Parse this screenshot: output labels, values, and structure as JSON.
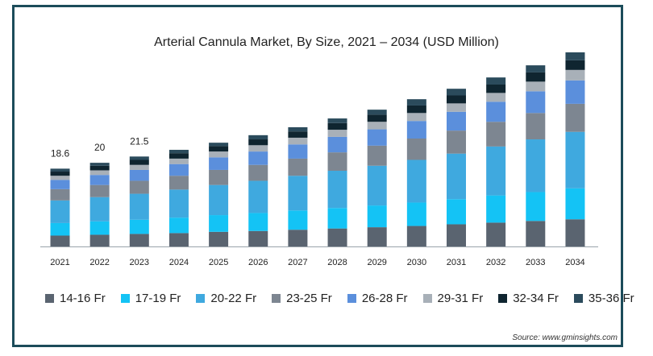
{
  "chart_data": {
    "type": "bar",
    "stacked": true,
    "title": "Arterial Cannula Market, By Size, 2021 – 2034 (USD Million)",
    "xlabel": "",
    "ylabel": "",
    "grid": false,
    "legend_placement": "bottom",
    "categories": [
      "2021",
      "2022",
      "2023",
      "2024",
      "2025",
      "2026",
      "2027",
      "2028",
      "2029",
      "2030",
      "2031",
      "2032",
      "2033",
      "2034"
    ],
    "total_labels": [
      "18.6",
      "20",
      "21.5"
    ],
    "totals": [
      18.6,
      20,
      21.5,
      23.1,
      24.8,
      26.6,
      28.5,
      30.6,
      32.8,
      35.2,
      37.7,
      40.4,
      43.3,
      46.4
    ],
    "series": [
      {
        "name": "14-16 Fr",
        "color": "#5a6470",
        "values": [
          2.6,
          2.8,
          3.0,
          3.2,
          3.5,
          3.7,
          4.0,
          4.3,
          4.6,
          4.9,
          5.3,
          5.7,
          6.1,
          6.5
        ]
      },
      {
        "name": "17-19 Fr",
        "color": "#14c3f5",
        "values": [
          3.0,
          3.2,
          3.4,
          3.7,
          4.0,
          4.3,
          4.6,
          4.9,
          5.2,
          5.6,
          6.0,
          6.5,
          6.9,
          7.4
        ]
      },
      {
        "name": "20-22 Fr",
        "color": "#3fa9df",
        "values": [
          5.4,
          5.8,
          6.2,
          6.7,
          7.2,
          7.7,
          8.3,
          8.9,
          9.5,
          10.2,
          10.9,
          11.7,
          12.6,
          13.5
        ]
      },
      {
        "name": "23-25 Fr",
        "color": "#7d8691",
        "values": [
          2.7,
          2.9,
          3.1,
          3.3,
          3.6,
          3.8,
          4.1,
          4.4,
          4.8,
          5.1,
          5.5,
          5.9,
          6.3,
          6.7
        ]
      },
      {
        "name": "26-28 Fr",
        "color": "#5b8fdc",
        "values": [
          2.2,
          2.4,
          2.6,
          2.8,
          3.0,
          3.2,
          3.4,
          3.7,
          3.9,
          4.2,
          4.5,
          4.8,
          5.2,
          5.6
        ]
      },
      {
        "name": "29-31 Fr",
        "color": "#a8b0b8",
        "values": [
          1.0,
          1.1,
          1.2,
          1.3,
          1.4,
          1.5,
          1.6,
          1.7,
          1.8,
          1.9,
          2.0,
          2.1,
          2.3,
          2.5
        ]
      },
      {
        "name": "32-34 Fr",
        "color": "#0f2530",
        "values": [
          1.0,
          1.1,
          1.2,
          1.3,
          1.3,
          1.4,
          1.5,
          1.6,
          1.7,
          1.8,
          1.9,
          2.0,
          2.2,
          2.3
        ]
      },
      {
        "name": "35-36 Fr",
        "color": "#2b4b5c",
        "values": [
          0.7,
          0.7,
          0.8,
          0.8,
          0.8,
          1.0,
          1.0,
          1.1,
          1.2,
          1.5,
          1.6,
          1.7,
          1.7,
          1.9
        ]
      }
    ]
  },
  "source_text": "Source: www.gminsights.com"
}
